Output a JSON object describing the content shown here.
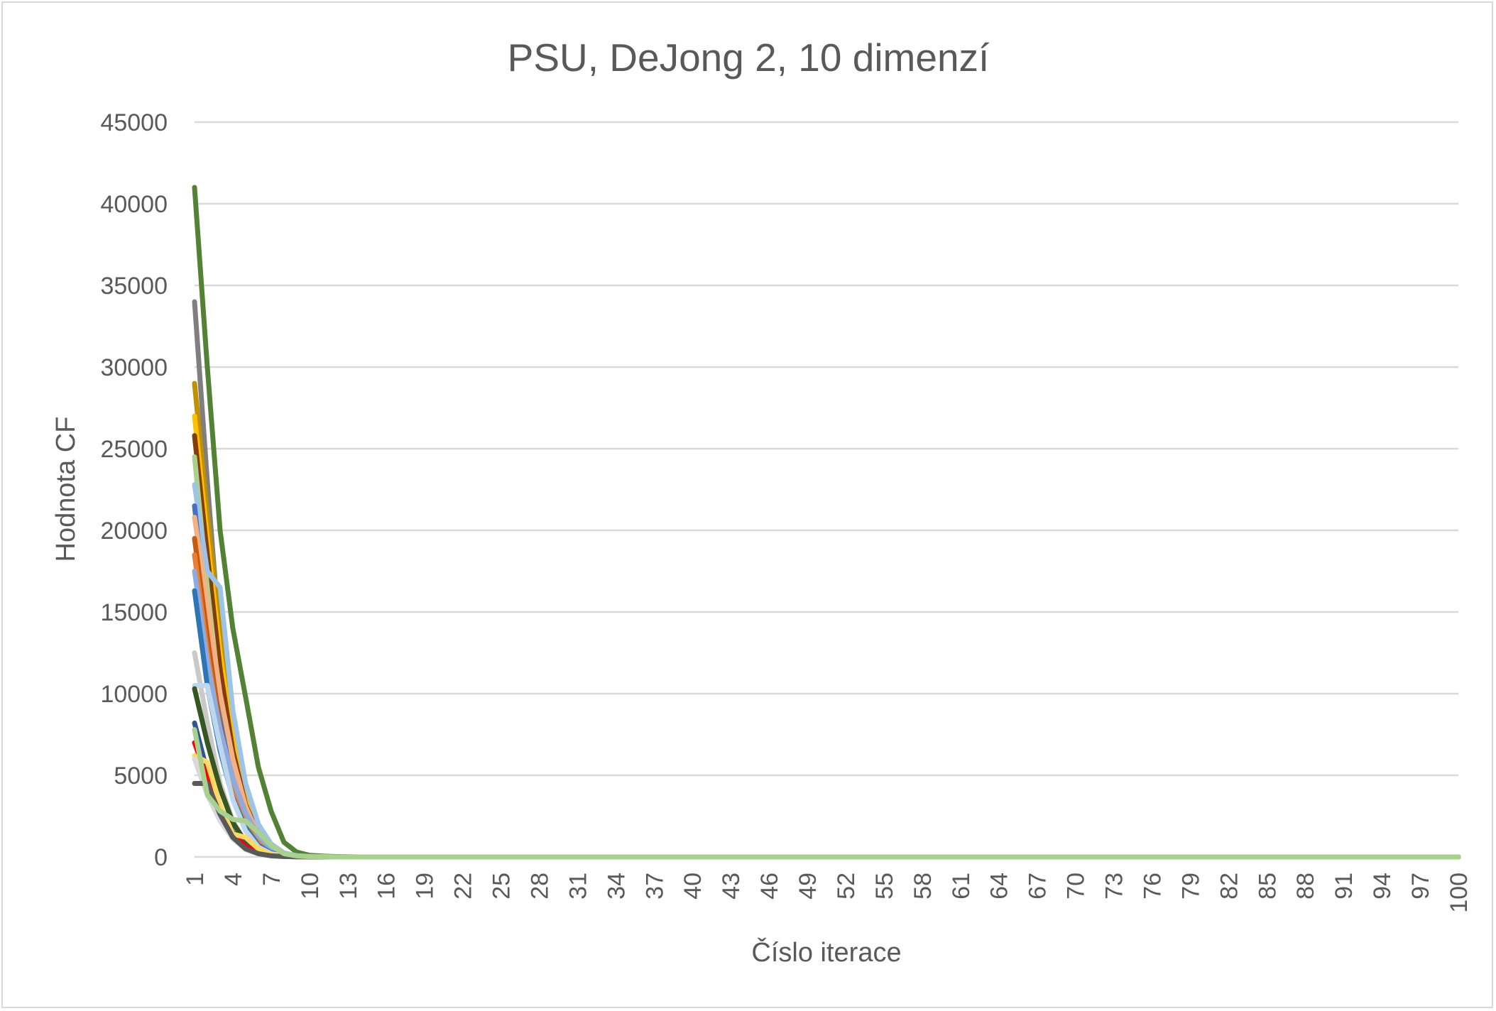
{
  "chart_data": {
    "type": "line",
    "title": "PSU, DeJong 2, 10 dimenzí",
    "xlabel": "Číslo iterace",
    "ylabel": "Hodnota CF",
    "ylim": [
      0,
      45000
    ],
    "yticks": [
      0,
      5000,
      10000,
      15000,
      20000,
      25000,
      30000,
      35000,
      40000,
      45000
    ],
    "x": [
      1,
      100
    ],
    "xticks": [
      1,
      4,
      7,
      10,
      13,
      16,
      19,
      22,
      25,
      28,
      31,
      34,
      37,
      40,
      43,
      46,
      49,
      52,
      55,
      58,
      61,
      64,
      67,
      70,
      73,
      76,
      79,
      82,
      85,
      88,
      91,
      94,
      97,
      100
    ],
    "grid": true,
    "legend": "none",
    "series": [
      {
        "color": "#548235",
        "start": [
          41000,
          30000,
          20000,
          14000,
          9800,
          5500,
          2800,
          900,
          300,
          100,
          50,
          20,
          10
        ]
      },
      {
        "color": "#7f7f7f",
        "start": [
          34000,
          23000,
          13000,
          7500,
          3500,
          1500,
          500,
          150,
          50,
          20,
          10
        ]
      },
      {
        "color": "#bf9000",
        "start": [
          29000,
          21000,
          14000,
          8500,
          4500,
          2000,
          700,
          200,
          60,
          20,
          10
        ]
      },
      {
        "color": "#ffc000",
        "start": [
          27000,
          19500,
          12500,
          7200,
          3900,
          1700,
          600,
          180,
          50,
          20,
          10
        ]
      },
      {
        "color": "#843c0c",
        "start": [
          25800,
          18500,
          11500,
          6500,
          3200,
          1400,
          500,
          150,
          50,
          20,
          10
        ]
      },
      {
        "color": "#a9d18e",
        "start": [
          24500,
          16500,
          9500,
          5500,
          2900,
          1200,
          400,
          120,
          40,
          20,
          10
        ]
      },
      {
        "color": "#9dc3e6",
        "start": [
          22800,
          17500,
          16500,
          9000,
          4500,
          2000,
          800,
          250,
          80,
          30,
          10
        ]
      },
      {
        "color": "#4472c4",
        "start": [
          21500,
          14000,
          8500,
          4800,
          2500,
          1000,
          350,
          110,
          40,
          20,
          10
        ]
      },
      {
        "color": "#f4b183",
        "start": [
          20800,
          15500,
          10000,
          6000,
          3100,
          1300,
          450,
          140,
          45,
          20,
          10
        ]
      },
      {
        "color": "#c55a11",
        "start": [
          19500,
          13500,
          8000,
          4500,
          2300,
          900,
          300,
          100,
          40,
          20,
          10
        ]
      },
      {
        "color": "#ed7d31",
        "start": [
          18500,
          12500,
          7500,
          4200,
          2100,
          850,
          280,
          90,
          35,
          15,
          10
        ]
      },
      {
        "color": "#8faadc",
        "start": [
          17500,
          12000,
          7800,
          4800,
          2700,
          1300,
          500,
          160,
          50,
          20,
          10
        ]
      },
      {
        "color": "#2e75b6",
        "start": [
          16300,
          10500,
          6500,
          3600,
          1800,
          700,
          250,
          80,
          30,
          15,
          10
        ]
      },
      {
        "color": "#c9c9c9",
        "start": [
          12500,
          8200,
          4500,
          2200,
          900,
          350,
          120,
          40,
          20,
          10
        ]
      },
      {
        "color": "#bdd7ee",
        "start": [
          10500,
          10500,
          6800,
          3500,
          1600,
          600,
          200,
          70,
          30,
          15,
          10
        ]
      },
      {
        "color": "#375623",
        "start": [
          10300,
          7000,
          4200,
          2100,
          900,
          350,
          120,
          40,
          20,
          10
        ]
      },
      {
        "color": "#2f5597",
        "start": [
          8200,
          5200,
          3000,
          1500,
          700,
          250,
          90,
          30,
          15,
          10
        ]
      },
      {
        "color": "#ff0000",
        "start": [
          7000,
          4800,
          2800,
          1400,
          650,
          250,
          90,
          30,
          15,
          10
        ]
      },
      {
        "color": "#ffd966",
        "start": [
          6200,
          5800,
          3200,
          1400,
          1200,
          500,
          150,
          40,
          20,
          10
        ]
      },
      {
        "color": "#d9d9d9",
        "start": [
          6000,
          3800,
          2200,
          1100,
          450,
          180,
          60,
          25,
          10
        ]
      },
      {
        "color": "#595959",
        "start": [
          4500,
          4500,
          2600,
          1200,
          500,
          200,
          70,
          25,
          10
        ]
      },
      {
        "color": "#a9d18e",
        "start": [
          7800,
          3800,
          2800,
          2300,
          2200,
          1500,
          700,
          200,
          60,
          20,
          10
        ]
      }
    ],
    "tail_value": 0
  }
}
